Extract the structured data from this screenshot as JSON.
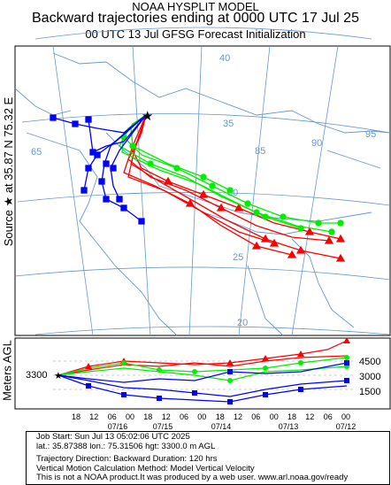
{
  "header": {
    "line1": "NOAA HYSPLIT MODEL",
    "line2": "Backward trajectories ending at 0000 UTC 17 Jul 25",
    "line3": "00 UTC 13 Jul    GFSG  Forecast Initialization"
  },
  "side_label": "Source ★ at   35.87 N   75.32 E",
  "map": {
    "lat_labels": [
      "40",
      "35",
      "30",
      "25",
      "20"
    ],
    "lon_labels": [
      "65",
      "85",
      "90",
      "95"
    ],
    "colors": {
      "red": "#ff0000",
      "blue": "#0000ff",
      "green": "#00ee00",
      "map_lines": "#6699cc"
    }
  },
  "height_panel": {
    "axis_label": "Meters AGL",
    "left_value": "3300",
    "right_values": [
      "4500",
      "3000",
      "1500"
    ],
    "time_ticks": [
      "18",
      "12",
      "06",
      "00",
      "18",
      "12",
      "06",
      "00",
      "18",
      "12",
      "06",
      "00",
      "18",
      "12",
      "06",
      "00"
    ],
    "date_labels": [
      "07/16",
      "07/15",
      "07/14",
      "07/13",
      "07/12"
    ]
  },
  "footer": {
    "job_start": "Job Start: Sun Jul 13 05:02:06 UTC 2025",
    "location": "lat.: 35.87388   lon.: 75.31506   hgt: 3300.0 m AGL",
    "direction": "Trajectory Direction: Backward      Duration: 120 hrs",
    "vertical": "Vertical Motion Calculation Method: Model Vertical Velocity",
    "disclaimer": "This is not a NOAA product.It was produced by a web user. www.arl.noaa.gov/ready"
  }
}
